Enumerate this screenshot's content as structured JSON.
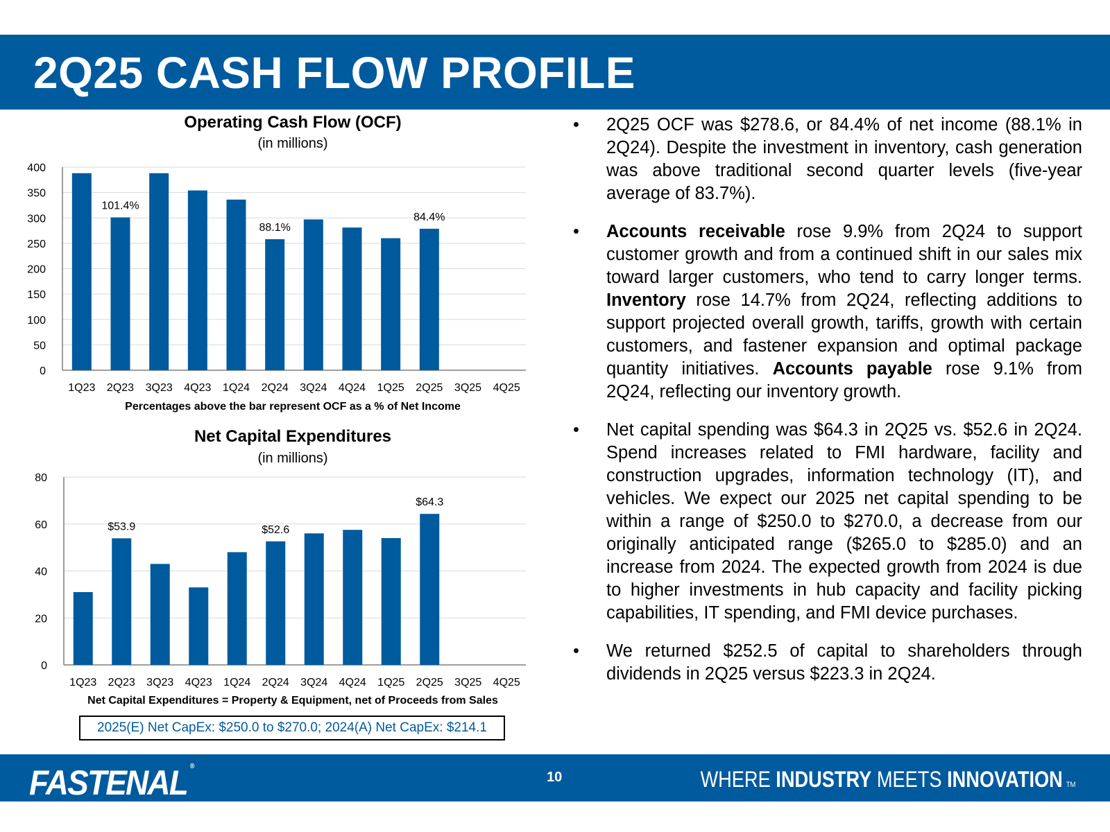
{
  "header": {
    "title": "2Q25 CASH FLOW PROFILE"
  },
  "ocf": {
    "title": "Operating Cash Flow (OCF)",
    "subtitle": "(in millions)",
    "note": "Percentages above the bar represent OCF as a % of Net Income"
  },
  "capex": {
    "title": "Net Capital Expenditures",
    "subtitle": "(in millions)",
    "note": "Net Capital Expenditures = Property & Equipment, net of Proceeds from Sales",
    "box": "2025(E) Net CapEx: $250.0 to $270.0; 2024(A) Net CapEx: $214.1"
  },
  "chart_data": [
    {
      "type": "bar",
      "title": "Operating Cash Flow (OCF)",
      "subtitle": "(in millions)",
      "categories": [
        "1Q23",
        "2Q23",
        "3Q23",
        "4Q23",
        "1Q24",
        "2Q24",
        "3Q24",
        "4Q24",
        "1Q25",
        "2Q25",
        "3Q25",
        "4Q25"
      ],
      "values": [
        388,
        301,
        388,
        354,
        336,
        258,
        297,
        281,
        260,
        278.6,
        null,
        null
      ],
      "data_labels": [
        "",
        "101.4%",
        "",
        "",
        "",
        "88.1%",
        "",
        "",
        "",
        "84.4%",
        "",
        ""
      ],
      "ylim": [
        0,
        400
      ],
      "yticks": [
        0,
        50,
        100,
        150,
        200,
        250,
        300,
        350,
        400
      ],
      "grid": true,
      "color": "#005a9e"
    },
    {
      "type": "bar",
      "title": "Net Capital Expenditures",
      "subtitle": "(in millions)",
      "categories": [
        "1Q23",
        "2Q23",
        "3Q23",
        "4Q23",
        "1Q24",
        "2Q24",
        "3Q24",
        "4Q24",
        "1Q25",
        "2Q25",
        "3Q25",
        "4Q25"
      ],
      "values": [
        31,
        53.9,
        43,
        33,
        48,
        52.6,
        56,
        57.5,
        54,
        64.3,
        null,
        null
      ],
      "data_labels": [
        "",
        "$53.9",
        "",
        "",
        "",
        "$52.6",
        "",
        "",
        "",
        "$64.3",
        "",
        ""
      ],
      "ylim": [
        0,
        80
      ],
      "yticks": [
        0,
        20,
        40,
        60,
        80
      ],
      "grid": true,
      "color": "#005a9e"
    }
  ],
  "bullets": [
    {
      "parts": [
        {
          "t": "2Q25 OCF was $278.6, or 84.4% of net income (88.1% in 2Q24). Despite the investment in inventory, cash generation was above traditional second quarter levels (five-year average of 83.7%).",
          "b": false
        }
      ]
    },
    {
      "parts": [
        {
          "t": "Accounts receivable",
          "b": true
        },
        {
          "t": " rose 9.9% from 2Q24 to support customer growth and from a continued shift in our sales mix toward larger customers, who tend to carry longer terms. ",
          "b": false
        },
        {
          "t": "Inventory",
          "b": true
        },
        {
          "t": " rose 14.7% from 2Q24, reflecting additions to support projected overall growth, tariffs, growth with certain customers, and fastener expansion and optimal package quantity initiatives. ",
          "b": false
        },
        {
          "t": "Accounts payable",
          "b": true
        },
        {
          "t": " rose 9.1% from 2Q24, reflecting our inventory growth.",
          "b": false
        }
      ]
    },
    {
      "parts": [
        {
          "t": "Net capital spending was $64.3 in 2Q25 vs. $52.6 in 2Q24. Spend increases related to FMI hardware, facility and construction upgrades, information technology (IT), and vehicles. We expect our 2025 net capital spending to be within a range of $250.0 to $270.0, a decrease from our originally anticipated range ($265.0 to $285.0) and an increase from 2024. The expected growth from 2024 is due to higher investments in hub capacity and facility picking capabilities, IT spending, and FMI device purchases.",
          "b": false
        }
      ]
    },
    {
      "parts": [
        {
          "t": "We returned $252.5 of capital to shareholders through dividends in 2Q25 versus $223.3 in 2Q24.",
          "b": false
        }
      ]
    }
  ],
  "bullet_char": "•",
  "footer": {
    "logo": "FASTENAL",
    "logo_mark": "®",
    "page": "10",
    "tag_1": "WHERE ",
    "tag_2": "INDUSTRY",
    "tag_3": " MEETS ",
    "tag_4": "INNOVATION",
    "tag_tm": "TM"
  }
}
